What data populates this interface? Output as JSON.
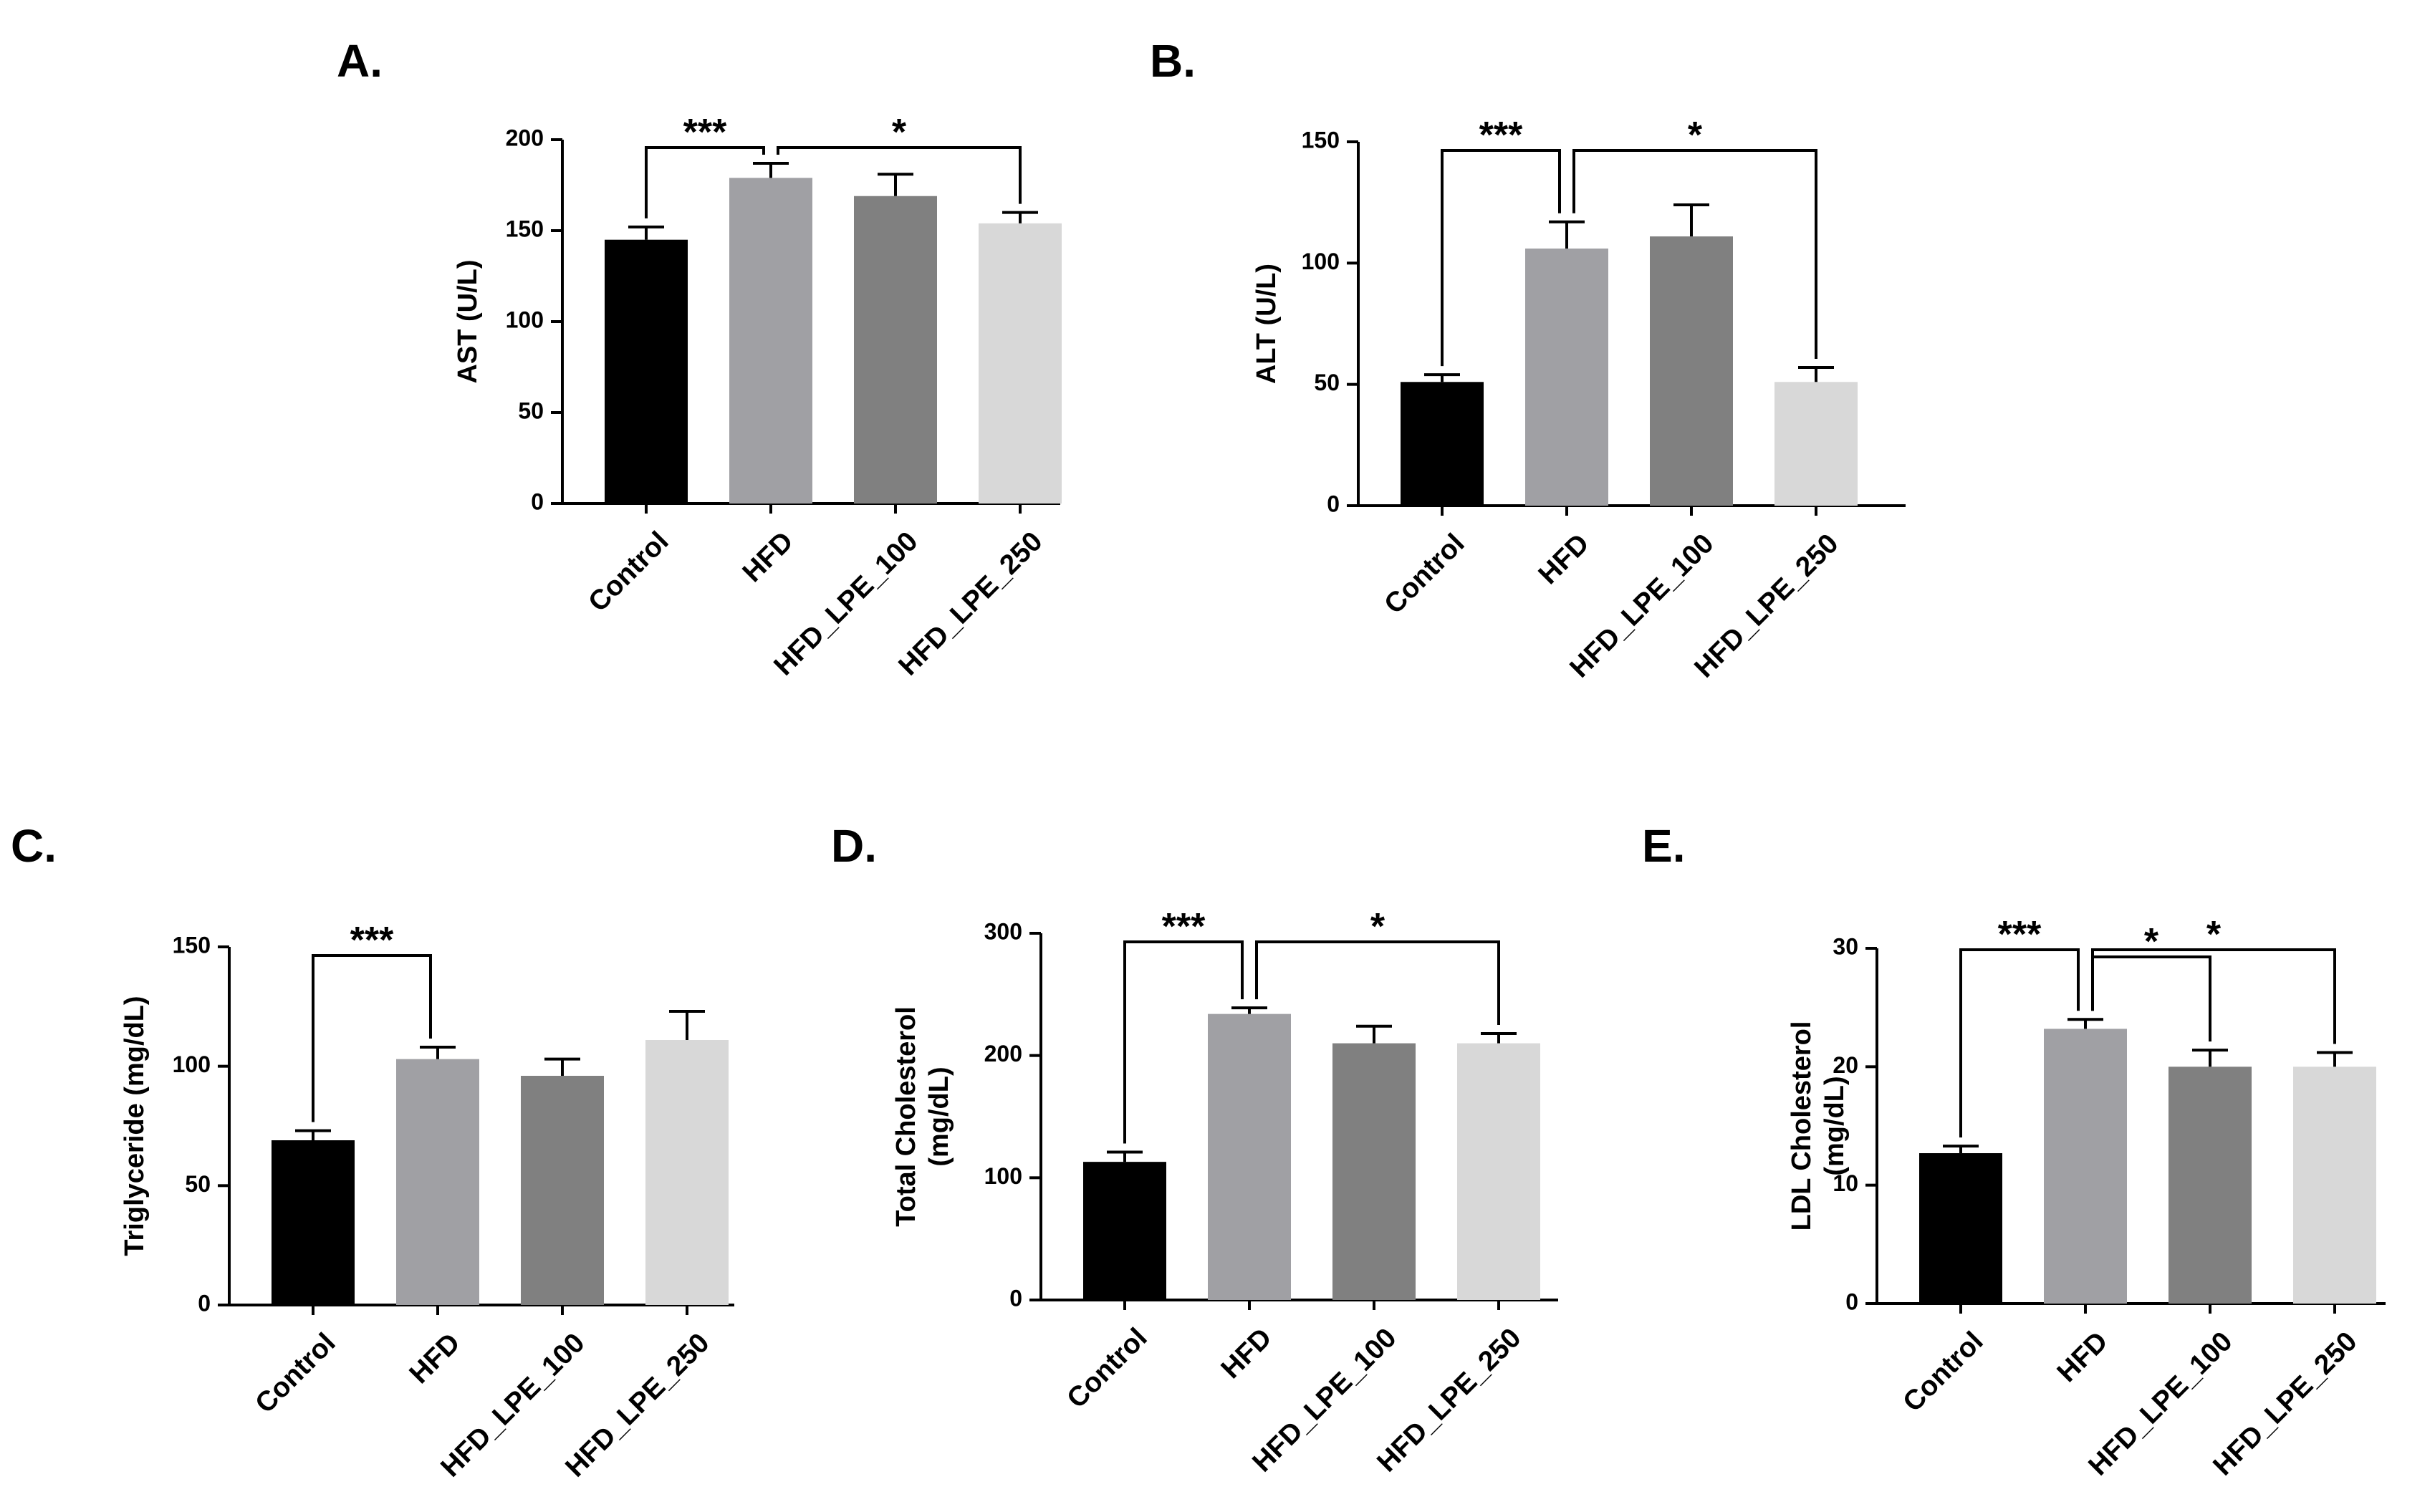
{
  "chart_data": [
    {
      "type": "bar",
      "panel": "A.",
      "categories": [
        "Control",
        "HFD",
        "HFD_LPE_100",
        "HFD_LPE_250"
      ],
      "values": [
        145,
        179,
        169,
        154
      ],
      "errors": [
        7,
        8,
        12,
        6
      ],
      "colors": [
        "#000000",
        "#a0a0a4",
        "#808080",
        "#d8d8d8"
      ],
      "ylabel": "AST (U/L)",
      "ylabel_lines": [
        "AST (U/L)"
      ],
      "ylim": [
        0,
        200
      ],
      "yticks": [
        0,
        50,
        100,
        150,
        200
      ],
      "significance": [
        {
          "from": 0,
          "to": 1,
          "label": "***",
          "level": 0
        },
        {
          "from": 1,
          "to": 3,
          "label": "*",
          "level": 0
        }
      ]
    },
    {
      "type": "bar",
      "panel": "B.",
      "categories": [
        "Control",
        "HFD",
        "HFD_LPE_100",
        "HFD_LPE_250"
      ],
      "values": [
        51,
        106,
        111,
        51
      ],
      "errors": [
        3,
        11,
        13,
        6
      ],
      "colors": [
        "#000000",
        "#a0a0a4",
        "#808080",
        "#d8d8d8"
      ],
      "ylabel": "ALT (U/L)",
      "ylabel_lines": [
        "ALT (U/L)"
      ],
      "ylim": [
        0,
        150
      ],
      "yticks": [
        0,
        50,
        100,
        150
      ],
      "significance": [
        {
          "from": 0,
          "to": 1,
          "label": "***",
          "level": 0
        },
        {
          "from": 1,
          "to": 3,
          "label": "*",
          "level": 0
        }
      ]
    },
    {
      "type": "bar",
      "panel": "C.",
      "categories": [
        "Control",
        "HFD",
        "HFD_LPE_100",
        "HFD_LPE_250"
      ],
      "values": [
        69,
        103,
        96,
        111
      ],
      "errors": [
        4,
        5,
        7,
        12
      ],
      "colors": [
        "#000000",
        "#a0a0a4",
        "#808080",
        "#d8d8d8"
      ],
      "ylabel": "Triglyceride (mg/dL)",
      "ylabel_lines": [
        "Triglyceride (mg/dL)"
      ],
      "ylim": [
        0,
        150
      ],
      "yticks": [
        0,
        50,
        100,
        150
      ],
      "significance": [
        {
          "from": 0,
          "to": 1,
          "label": "***",
          "level": 0
        }
      ]
    },
    {
      "type": "bar",
      "panel": "D.",
      "categories": [
        "Control",
        "HFD",
        "HFD_LPE_100",
        "HFD_LPE_250"
      ],
      "values": [
        113,
        234,
        210,
        210
      ],
      "errors": [
        8,
        5,
        14,
        8
      ],
      "colors": [
        "#000000",
        "#a0a0a4",
        "#808080",
        "#d8d8d8"
      ],
      "ylabel": "Total Cholesterol (mg/dL)",
      "ylabel_lines": [
        "Total Cholesterol",
        "(mg/dL)"
      ],
      "ylim": [
        0,
        300
      ],
      "yticks": [
        0,
        100,
        200,
        300
      ],
      "significance": [
        {
          "from": 0,
          "to": 1,
          "label": "***",
          "level": 0
        },
        {
          "from": 1,
          "to": 3,
          "label": "*",
          "level": 0
        }
      ]
    },
    {
      "type": "bar",
      "panel": "E.",
      "categories": [
        "Control",
        "HFD",
        "HFD_LPE_100",
        "HFD_LPE_250"
      ],
      "values": [
        12.7,
        23.2,
        20.0,
        20.0
      ],
      "errors": [
        0.6,
        0.8,
        1.4,
        1.2
      ],
      "colors": [
        "#000000",
        "#a0a0a4",
        "#808080",
        "#d8d8d8"
      ],
      "ylabel": "LDL Cholesterol (mg/dL)",
      "ylabel_lines": [
        "LDL Cholesterol",
        "(mg/dL)"
      ],
      "ylim": [
        0,
        30
      ],
      "yticks": [
        0,
        10,
        20,
        30
      ],
      "significance": [
        {
          "from": 0,
          "to": 1,
          "label": "***",
          "level": 1
        },
        {
          "from": 1,
          "to": 2,
          "label": "*",
          "level": 0
        },
        {
          "from": 1,
          "to": 3,
          "label": "*",
          "level": 1
        }
      ]
    }
  ]
}
